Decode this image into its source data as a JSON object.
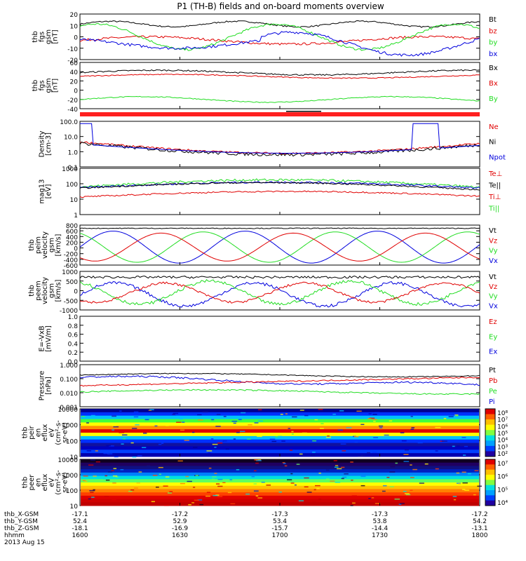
{
  "title": "P1 (TH-B) fields and on-board moments overview",
  "colors": {
    "black": "#000000",
    "red": "#e00000",
    "green": "#22dd22",
    "blue": "#0000dd",
    "bar": "#ff2020"
  },
  "chart_data": [
    {
      "type": "line",
      "ylabel": [
        "thb",
        "fgs",
        "gsm",
        "[nT]"
      ],
      "ylim": [
        -20,
        20
      ],
      "ticks": [
        "20",
        "10",
        "0",
        "-10",
        "-20"
      ],
      "legend": [
        {
          "text": "Bt",
          "color": "black"
        },
        {
          "text": "bz",
          "color": "red"
        },
        {
          "text": "by",
          "color": "green"
        },
        {
          "text": "bx",
          "color": "blue"
        }
      ]
    },
    {
      "type": "line",
      "ylabel": [
        "thb",
        "fgs",
        "gsm",
        "[nT]"
      ],
      "ylim": [
        -60,
        60
      ],
      "ticks": [
        "60",
        "40",
        "20",
        "0",
        "-20",
        "-40"
      ],
      "legend": [
        {
          "text": "Bx",
          "color": "black"
        },
        {
          "text": "Bx",
          "color": "red"
        },
        {
          "text": "By",
          "color": "green"
        }
      ]
    },
    {
      "type": "line",
      "ylabel": [
        "Density",
        "[cm-3]"
      ],
      "ticks": [
        "100.0",
        "10.0",
        "1.0",
        "0.1"
      ],
      "log": true,
      "legend": [
        {
          "text": "Ne",
          "color": "red"
        },
        {
          "text": "Ni",
          "color": "black"
        },
        {
          "text": "Npot",
          "color": "blue"
        }
      ]
    },
    {
      "type": "line",
      "ylabel": [
        "mag13",
        "[eV]"
      ],
      "ticks": [
        "1000",
        "100",
        "10",
        "1"
      ],
      "log": true,
      "legend": [
        {
          "text": "Te⊥",
          "color": "red"
        },
        {
          "text": "Te||",
          "color": "black"
        },
        {
          "text": "Ti⊥",
          "color": "red"
        },
        {
          "text": "Ti||",
          "color": "green"
        }
      ]
    },
    {
      "type": "line",
      "ylabel": [
        "thb",
        "peim",
        "velocity",
        "gsm",
        "[km/s]"
      ],
      "ylim": [
        -600,
        800
      ],
      "ticks": [
        "800",
        "600",
        "400",
        "200",
        "0",
        "-200",
        "-400",
        "-600"
      ],
      "legend": [
        {
          "text": "Vt",
          "color": "black"
        },
        {
          "text": "Vz",
          "color": "red"
        },
        {
          "text": "Vy",
          "color": "green"
        },
        {
          "text": "Vx",
          "color": "blue"
        }
      ]
    },
    {
      "type": "line",
      "ylabel": [
        "thb",
        "peem",
        "velocity",
        "gsm",
        "[km/s]"
      ],
      "ylim": [
        -1000,
        1000
      ],
      "ticks": [
        "1000",
        "500",
        "0",
        "-500",
        "-1000"
      ],
      "legend": [
        {
          "text": "Vt",
          "color": "black"
        },
        {
          "text": "Vz",
          "color": "red"
        },
        {
          "text": "Vy",
          "color": "green"
        },
        {
          "text": "Vx",
          "color": "blue"
        }
      ]
    },
    {
      "type": "line",
      "ylabel": [
        "E=-VxB",
        "[mV/m]"
      ],
      "ylim": [
        0,
        1
      ],
      "ticks": [
        "1.0",
        "0.8",
        "0.6",
        "0.4",
        "0.2",
        "0.0"
      ],
      "legend": [
        {
          "text": "Ez",
          "color": "red"
        },
        {
          "text": "Ey",
          "color": "green"
        },
        {
          "text": "Ex",
          "color": "blue"
        }
      ]
    },
    {
      "type": "line",
      "ylabel": [
        "Pressure",
        "[nPa]"
      ],
      "ticks": [
        "1.000",
        "0.100",
        "0.010",
        "0.001"
      ],
      "log": true,
      "legend": [
        {
          "text": "Pt",
          "color": "black"
        },
        {
          "text": "Pb",
          "color": "red"
        },
        {
          "text": "Pe",
          "color": "green"
        },
        {
          "text": "Pi",
          "color": "blue"
        }
      ]
    },
    {
      "type": "heatmap",
      "ylabel": [
        "thb",
        "peir",
        "en",
        "eflux",
        "eV",
        "(cm²-s-",
        "sr-eV)"
      ],
      "ticks": [
        "10000",
        "1000",
        "100",
        "10"
      ],
      "cbar": [
        "10⁸",
        "10⁷",
        "10⁶",
        "10⁵",
        "10⁴",
        "10³",
        "10²"
      ]
    },
    {
      "type": "heatmap",
      "ylabel": [
        "thb",
        "peer",
        "en",
        "eflux",
        "eV",
        "(cm²-s-",
        "sr-eV)"
      ],
      "ticks": [
        "10000",
        "1000",
        "100",
        "10"
      ],
      "cbar": [
        "10⁷",
        "10⁶",
        "10⁵",
        "10⁴"
      ]
    }
  ],
  "xaxis": {
    "rows": [
      {
        "label": "thb_X-GSM",
        "values": [
          "-17.1",
          "-17.2",
          "-17.3",
          "-17.3",
          "-17.2"
        ]
      },
      {
        "label": "thb_Y-GSM",
        "values": [
          "52.4",
          "52.9",
          "53.4",
          "53.8",
          "54.2"
        ]
      },
      {
        "label": "thb_Z-GSM",
        "values": [
          "-18.1",
          "-16.9",
          "-15.7",
          "-14.4",
          "-13.1"
        ]
      },
      {
        "label": "hhmm",
        "values": [
          "1600",
          "1630",
          "1700",
          "1730",
          "1800"
        ]
      }
    ],
    "date": "2013 Aug 15"
  }
}
